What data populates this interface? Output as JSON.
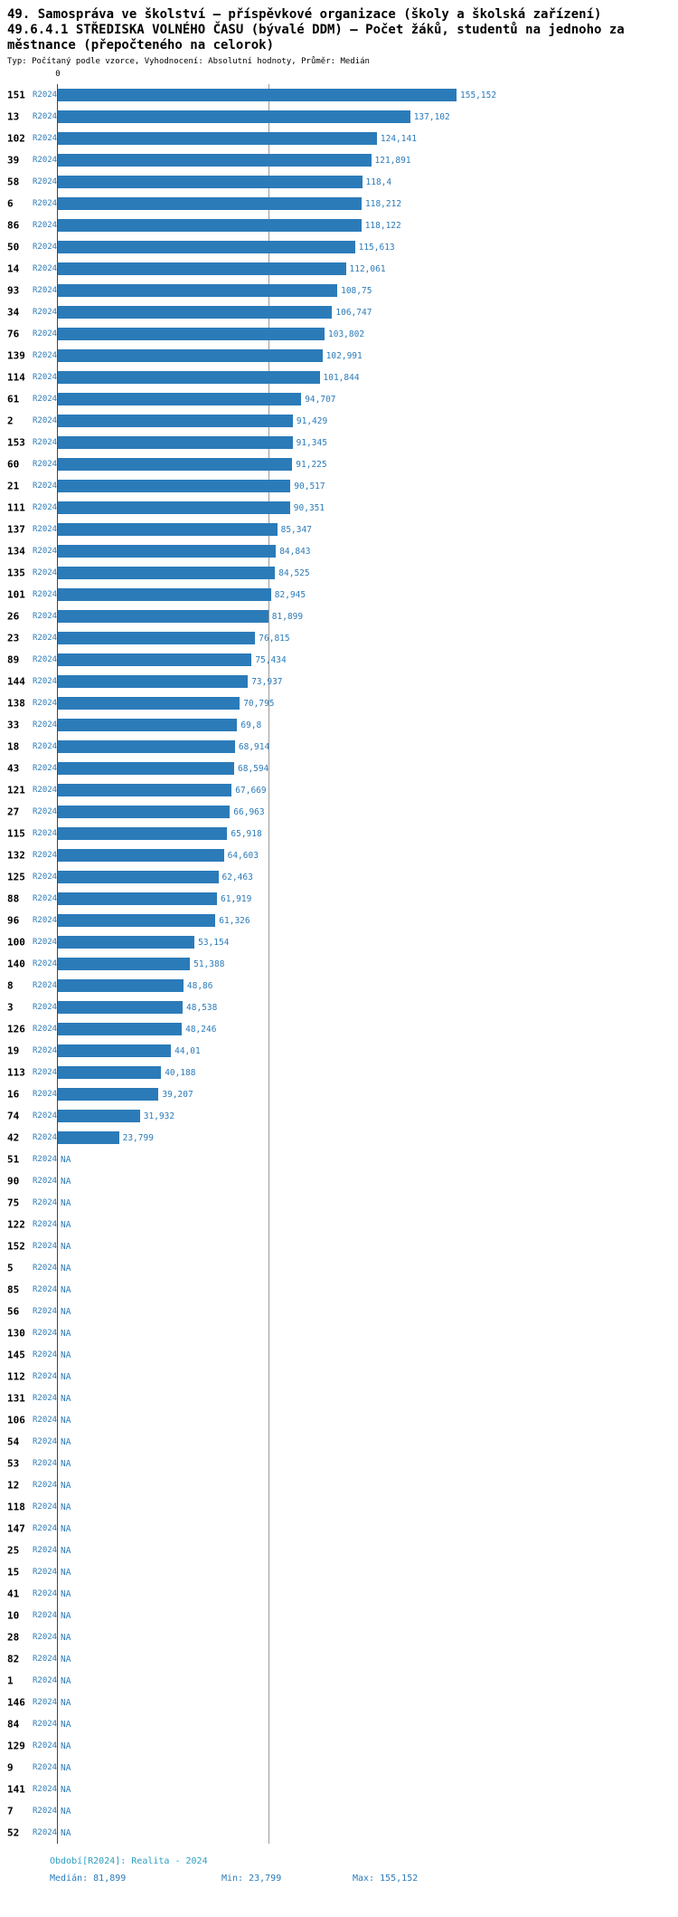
{
  "header": {
    "title_lines": [
      "49. Samospráva ve školství – příspěvkové organizace (školy a školská zařízení)",
      "49.6.4.1 STŘEDISKA VOLNÉHO ČASU (bývalé DDM) – Počet žáků, studentů na jednoho za",
      "městnance (přepočteného na celorok)"
    ],
    "subtitle": "Typ: Počítaný podle vzorce, Vyhodnocení: Absolutní hodnoty, Průměr: Medián"
  },
  "axis": {
    "zero_label": "0"
  },
  "chart_data": {
    "type": "bar",
    "orientation": "horizontal",
    "series_label": "R2024",
    "value_axis_min": 0,
    "value_axis_max": 155.152,
    "median": 81.899,
    "grid": "median-line-only",
    "colors": {
      "bar": "#2B7BB9",
      "value_label": "#2B7BB9",
      "period_label": "#2B7BB9",
      "footer_period": "#2D9FC0"
    },
    "rows": [
      {
        "id": "151",
        "period": "R2024",
        "value": 155.152,
        "label": "155,152"
      },
      {
        "id": "13",
        "period": "R2024",
        "value": 137.102,
        "label": "137,102"
      },
      {
        "id": "102",
        "period": "R2024",
        "value": 124.141,
        "label": "124,141"
      },
      {
        "id": "39",
        "period": "R2024",
        "value": 121.891,
        "label": "121,891"
      },
      {
        "id": "58",
        "period": "R2024",
        "value": 118.4,
        "label": "118,4"
      },
      {
        "id": "6",
        "period": "R2024",
        "value": 118.212,
        "label": "118,212"
      },
      {
        "id": "86",
        "period": "R2024",
        "value": 118.122,
        "label": "118,122"
      },
      {
        "id": "50",
        "period": "R2024",
        "value": 115.613,
        "label": "115,613"
      },
      {
        "id": "14",
        "period": "R2024",
        "value": 112.061,
        "label": "112,061"
      },
      {
        "id": "93",
        "period": "R2024",
        "value": 108.75,
        "label": "108,75"
      },
      {
        "id": "34",
        "period": "R2024",
        "value": 106.747,
        "label": "106,747"
      },
      {
        "id": "76",
        "period": "R2024",
        "value": 103.802,
        "label": "103,802"
      },
      {
        "id": "139",
        "period": "R2024",
        "value": 102.991,
        "label": "102,991"
      },
      {
        "id": "114",
        "period": "R2024",
        "value": 101.844,
        "label": "101,844"
      },
      {
        "id": "61",
        "period": "R2024",
        "value": 94.707,
        "label": "94,707"
      },
      {
        "id": "2",
        "period": "R2024",
        "value": 91.429,
        "label": "91,429"
      },
      {
        "id": "153",
        "period": "R2024",
        "value": 91.345,
        "label": "91,345"
      },
      {
        "id": "60",
        "period": "R2024",
        "value": 91.225,
        "label": "91,225"
      },
      {
        "id": "21",
        "period": "R2024",
        "value": 90.517,
        "label": "90,517"
      },
      {
        "id": "111",
        "period": "R2024",
        "value": 90.351,
        "label": "90,351"
      },
      {
        "id": "137",
        "period": "R2024",
        "value": 85.347,
        "label": "85,347"
      },
      {
        "id": "134",
        "period": "R2024",
        "value": 84.843,
        "label": "84,843"
      },
      {
        "id": "135",
        "period": "R2024",
        "value": 84.525,
        "label": "84,525"
      },
      {
        "id": "101",
        "period": "R2024",
        "value": 82.945,
        "label": "82,945"
      },
      {
        "id": "26",
        "period": "R2024",
        "value": 81.899,
        "label": "81,899"
      },
      {
        "id": "23",
        "period": "R2024",
        "value": 76.815,
        "label": "76,815"
      },
      {
        "id": "89",
        "period": "R2024",
        "value": 75.434,
        "label": "75,434"
      },
      {
        "id": "144",
        "period": "R2024",
        "value": 73.937,
        "label": "73,937"
      },
      {
        "id": "138",
        "period": "R2024",
        "value": 70.795,
        "label": "70,795"
      },
      {
        "id": "33",
        "period": "R2024",
        "value": 69.8,
        "label": "69,8"
      },
      {
        "id": "18",
        "period": "R2024",
        "value": 68.914,
        "label": "68,914"
      },
      {
        "id": "43",
        "period": "R2024",
        "value": 68.594,
        "label": "68,594"
      },
      {
        "id": "121",
        "period": "R2024",
        "value": 67.669,
        "label": "67,669"
      },
      {
        "id": "27",
        "period": "R2024",
        "value": 66.963,
        "label": "66,963"
      },
      {
        "id": "115",
        "period": "R2024",
        "value": 65.918,
        "label": "65,918"
      },
      {
        "id": "132",
        "period": "R2024",
        "value": 64.603,
        "label": "64,603"
      },
      {
        "id": "125",
        "period": "R2024",
        "value": 62.463,
        "label": "62,463"
      },
      {
        "id": "88",
        "period": "R2024",
        "value": 61.919,
        "label": "61,919"
      },
      {
        "id": "96",
        "period": "R2024",
        "value": 61.326,
        "label": "61,326"
      },
      {
        "id": "100",
        "period": "R2024",
        "value": 53.154,
        "label": "53,154"
      },
      {
        "id": "140",
        "period": "R2024",
        "value": 51.388,
        "label": "51,388"
      },
      {
        "id": "8",
        "period": "R2024",
        "value": 48.86,
        "label": "48,86"
      },
      {
        "id": "3",
        "period": "R2024",
        "value": 48.538,
        "label": "48,538"
      },
      {
        "id": "126",
        "period": "R2024",
        "value": 48.246,
        "label": "48,246"
      },
      {
        "id": "19",
        "period": "R2024",
        "value": 44.01,
        "label": "44,01"
      },
      {
        "id": "113",
        "period": "R2024",
        "value": 40.188,
        "label": "40,188"
      },
      {
        "id": "16",
        "period": "R2024",
        "value": 39.207,
        "label": "39,207"
      },
      {
        "id": "74",
        "period": "R2024",
        "value": 31.932,
        "label": "31,932"
      },
      {
        "id": "42",
        "period": "R2024",
        "value": 23.799,
        "label": "23,799"
      },
      {
        "id": "51",
        "period": "R2024",
        "value": null,
        "label": "NA"
      },
      {
        "id": "90",
        "period": "R2024",
        "value": null,
        "label": "NA"
      },
      {
        "id": "75",
        "period": "R2024",
        "value": null,
        "label": "NA"
      },
      {
        "id": "122",
        "period": "R2024",
        "value": null,
        "label": "NA"
      },
      {
        "id": "152",
        "period": "R2024",
        "value": null,
        "label": "NA"
      },
      {
        "id": "5",
        "period": "R2024",
        "value": null,
        "label": "NA"
      },
      {
        "id": "85",
        "period": "R2024",
        "value": null,
        "label": "NA"
      },
      {
        "id": "56",
        "period": "R2024",
        "value": null,
        "label": "NA"
      },
      {
        "id": "130",
        "period": "R2024",
        "value": null,
        "label": "NA"
      },
      {
        "id": "145",
        "period": "R2024",
        "value": null,
        "label": "NA"
      },
      {
        "id": "112",
        "period": "R2024",
        "value": null,
        "label": "NA"
      },
      {
        "id": "131",
        "period": "R2024",
        "value": null,
        "label": "NA"
      },
      {
        "id": "106",
        "period": "R2024",
        "value": null,
        "label": "NA"
      },
      {
        "id": "54",
        "period": "R2024",
        "value": null,
        "label": "NA"
      },
      {
        "id": "53",
        "period": "R2024",
        "value": null,
        "label": "NA"
      },
      {
        "id": "12",
        "period": "R2024",
        "value": null,
        "label": "NA"
      },
      {
        "id": "118",
        "period": "R2024",
        "value": null,
        "label": "NA"
      },
      {
        "id": "147",
        "period": "R2024",
        "value": null,
        "label": "NA"
      },
      {
        "id": "25",
        "period": "R2024",
        "value": null,
        "label": "NA"
      },
      {
        "id": "15",
        "period": "R2024",
        "value": null,
        "label": "NA"
      },
      {
        "id": "41",
        "period": "R2024",
        "value": null,
        "label": "NA"
      },
      {
        "id": "10",
        "period": "R2024",
        "value": null,
        "label": "NA"
      },
      {
        "id": "28",
        "period": "R2024",
        "value": null,
        "label": "NA"
      },
      {
        "id": "82",
        "period": "R2024",
        "value": null,
        "label": "NA"
      },
      {
        "id": "1",
        "period": "R2024",
        "value": null,
        "label": "NA"
      },
      {
        "id": "146",
        "period": "R2024",
        "value": null,
        "label": "NA"
      },
      {
        "id": "84",
        "period": "R2024",
        "value": null,
        "label": "NA"
      },
      {
        "id": "129",
        "period": "R2024",
        "value": null,
        "label": "NA"
      },
      {
        "id": "9",
        "period": "R2024",
        "value": null,
        "label": "NA"
      },
      {
        "id": "141",
        "period": "R2024",
        "value": null,
        "label": "NA"
      },
      {
        "id": "7",
        "period": "R2024",
        "value": null,
        "label": "NA"
      },
      {
        "id": "52",
        "period": "R2024",
        "value": null,
        "label": "NA"
      }
    ]
  },
  "footer": {
    "period_line": "Období[R2024]: Realita - 2024",
    "median_label": "Medián: 81,899",
    "min_label": "Min: 23,799",
    "max_label": "Max: 155,152"
  }
}
